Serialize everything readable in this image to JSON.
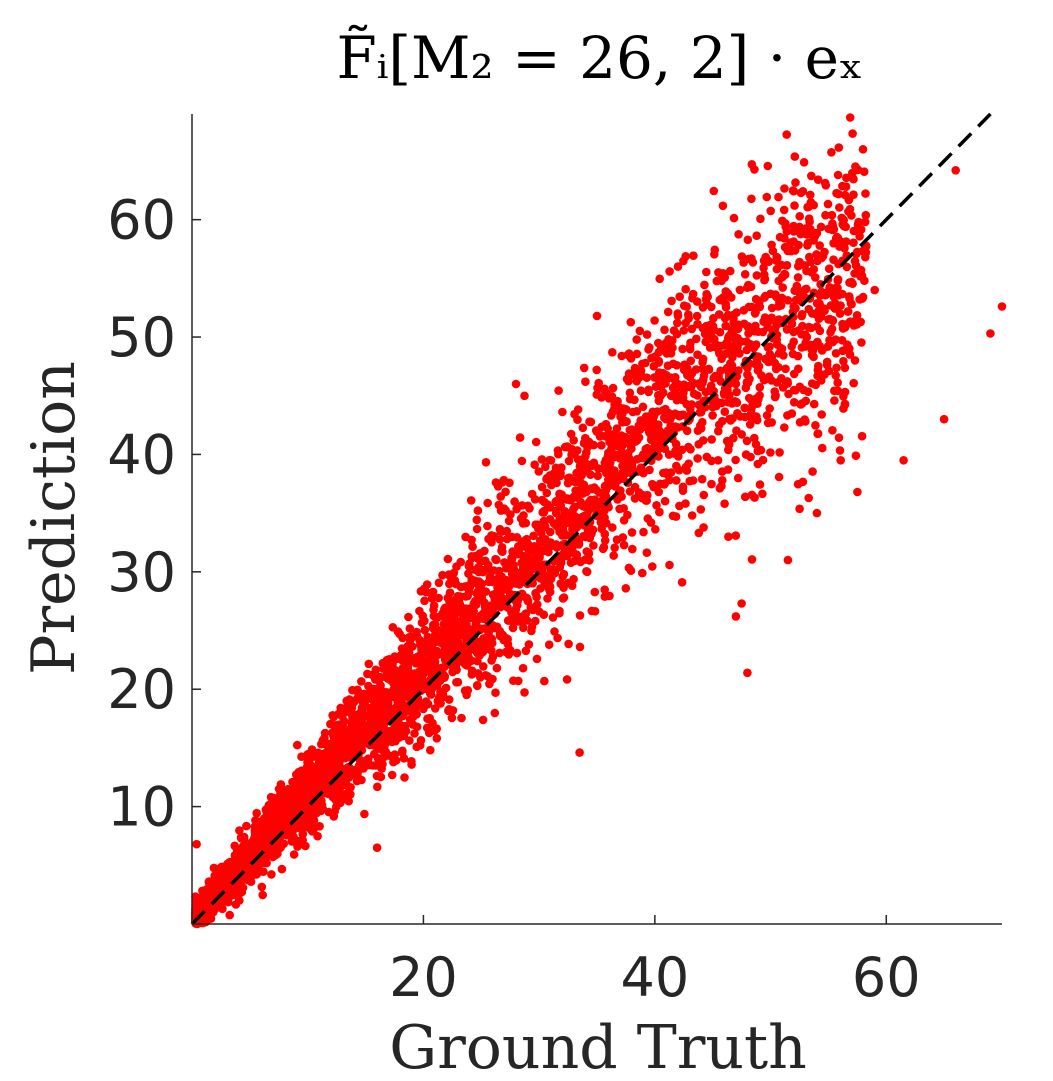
{
  "chart_data": {
    "type": "scatter",
    "title": "F̃ᵢ[M₂ = 26, 2] · eₓ",
    "xlabel": "Ground Truth",
    "ylabel": "Prediction",
    "xlim": [
      0,
      70
    ],
    "ylim": [
      0,
      69
    ],
    "xticks": [
      20,
      40,
      60
    ],
    "yticks": [
      10,
      20,
      30,
      40,
      50,
      60
    ],
    "x_tick_labels": [
      "20",
      "40",
      "60"
    ],
    "y_tick_labels": [
      "10",
      "20",
      "30",
      "40",
      "50",
      "60"
    ],
    "grid": false,
    "series": [
      {
        "marker_color": "#ff0000",
        "note_points": [
          [
            0.5,
            0.8
          ],
          [
            1.2,
            2.0
          ],
          [
            2.0,
            3.1
          ],
          [
            3.0,
            3.8
          ],
          [
            4.0,
            5.2
          ],
          [
            5.0,
            5.9
          ],
          [
            6.0,
            7.3
          ],
          [
            7.0,
            7.8
          ],
          [
            8.0,
            9.4
          ],
          [
            9.0,
            9.6
          ],
          [
            10.0,
            11.2
          ],
          [
            11.0,
            12.5
          ],
          [
            12.0,
            13.1
          ],
          [
            13.0,
            14.4
          ],
          [
            14.0,
            15.0
          ],
          [
            15.0,
            16.2
          ],
          [
            16.0,
            17.5
          ],
          [
            17.0,
            18.3
          ],
          [
            18.0,
            19.4
          ],
          [
            19.0,
            20.1
          ],
          [
            20.0,
            21.5
          ],
          [
            21.0,
            22.0
          ],
          [
            22.0,
            23.4
          ],
          [
            23.0,
            24.6
          ],
          [
            24.0,
            25.1
          ],
          [
            25.0,
            26.3
          ],
          [
            26.0,
            27.2
          ],
          [
            27.0,
            28.5
          ],
          [
            28.0,
            29.0
          ],
          [
            29.0,
            30.4
          ],
          [
            30.0,
            31.2
          ],
          [
            31.0,
            32.5
          ],
          [
            32.0,
            33.1
          ],
          [
            33.0,
            34.2
          ],
          [
            34.0,
            35.6
          ],
          [
            35.0,
            36.0
          ],
          [
            36.0,
            37.3
          ],
          [
            37.0,
            38.1
          ],
          [
            38.0,
            39.2
          ],
          [
            39.0,
            40.0
          ],
          [
            40.0,
            40.8
          ],
          [
            41.0,
            41.5
          ],
          [
            42.0,
            42.3
          ],
          [
            43.0,
            43.0
          ],
          [
            44.0,
            43.6
          ],
          [
            45.0,
            44.5
          ],
          [
            46.0,
            45.1
          ],
          [
            47.0,
            46.0
          ],
          [
            48.0,
            46.8
          ],
          [
            49.0,
            47.5
          ],
          [
            50.0,
            48.2
          ],
          [
            51.0,
            49.0
          ],
          [
            52.0,
            49.6
          ],
          [
            53.0,
            50.2
          ],
          [
            54.0,
            50.9
          ],
          [
            55.0,
            51.5
          ],
          [
            56.0,
            52.0
          ],
          [
            57.0,
            52.8
          ],
          [
            58.0,
            53.4
          ],
          [
            59.0,
            54.0
          ]
        ]
      }
    ],
    "outliers": [
      [
        0.4,
        6.8
      ],
      [
        16.0,
        6.5
      ],
      [
        33.5,
        14.6
      ],
      [
        48.0,
        21.4
      ],
      [
        47.0,
        26.2
      ],
      [
        47.5,
        27.3
      ],
      [
        51.5,
        31.0
      ],
      [
        54.0,
        35.0
      ],
      [
        57.5,
        36.8
      ],
      [
        61.5,
        39.5
      ],
      [
        65.0,
        43.0
      ],
      [
        69.0,
        50.3
      ],
      [
        70.0,
        52.6
      ],
      [
        66.0,
        64.2
      ],
      [
        52.0,
        59.0
      ],
      [
        50.5,
        56.5
      ],
      [
        42.0,
        56.0
      ],
      [
        35.0,
        51.8
      ],
      [
        42.0,
        51.8
      ],
      [
        28.0,
        46.0
      ],
      [
        34.0,
        46.2
      ]
    ],
    "reference_line": {
      "style": "dashed",
      "color": "#000000",
      "from": [
        0,
        0
      ],
      "to": [
        69,
        69
      ]
    }
  }
}
